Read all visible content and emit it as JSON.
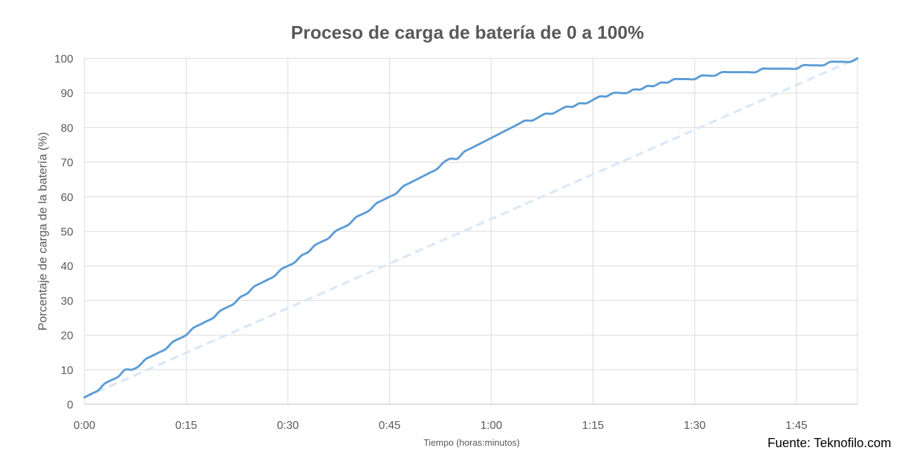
{
  "colors": {
    "background": "#ffffff",
    "text": "#595959",
    "gridline": "#d9d9d9",
    "main_series": "#5b9bd5",
    "reference_series": "#dbe8f6",
    "source_text": "#000000"
  },
  "source_text": "Fuente: Teknofilo.com",
  "chart_data": {
    "type": "line",
    "title": "Proceso de carga de batería de 0 a 100%",
    "xlabel": "Tiempo (horas:minutos)",
    "ylabel": "Porcentaje de carga de la batería (%)",
    "xlim": [
      0,
      114
    ],
    "ylim": [
      0,
      100
    ],
    "x_unit": "minutes",
    "x_tick_values": [
      0,
      15,
      30,
      45,
      60,
      75,
      90,
      105
    ],
    "x_tick_labels": [
      "0:00",
      "0:15",
      "0:30",
      "0:45",
      "1:00",
      "1:15",
      "1:30",
      "1:45"
    ],
    "y_ticks": [
      0,
      10,
      20,
      30,
      40,
      50,
      60,
      70,
      80,
      90,
      100
    ],
    "grid": true,
    "legend": "none",
    "series": [
      {
        "style": "solid",
        "color": "#5b9bd5",
        "x": [
          0,
          1,
          2,
          3,
          4,
          5,
          6,
          7,
          8,
          9,
          10,
          11,
          12,
          13,
          14,
          15,
          16,
          17,
          18,
          19,
          20,
          21,
          22,
          23,
          24,
          25,
          26,
          27,
          28,
          29,
          30,
          31,
          32,
          33,
          34,
          35,
          36,
          37,
          38,
          39,
          40,
          41,
          42,
          43,
          44,
          45,
          46,
          47,
          48,
          49,
          50,
          51,
          52,
          53,
          54,
          55,
          56,
          57,
          58,
          59,
          60,
          61,
          62,
          63,
          64,
          65,
          66,
          67,
          68,
          69,
          70,
          71,
          72,
          73,
          74,
          75,
          76,
          77,
          78,
          79,
          80,
          81,
          82,
          83,
          84,
          85,
          86,
          87,
          88,
          89,
          90,
          91,
          92,
          93,
          94,
          95,
          96,
          97,
          98,
          99,
          100,
          101,
          102,
          103,
          104,
          105,
          106,
          107,
          108,
          109,
          110,
          111,
          112,
          113,
          114
        ],
        "y": [
          2,
          3,
          4,
          6,
          7,
          8,
          10,
          10,
          11,
          13,
          14,
          15,
          16,
          18,
          19,
          20,
          22,
          23,
          24,
          25,
          27,
          28,
          29,
          31,
          32,
          34,
          35,
          36,
          37,
          39,
          40,
          41,
          43,
          44,
          46,
          47,
          48,
          50,
          51,
          52,
          54,
          55,
          56,
          58,
          59,
          60,
          61,
          63,
          64,
          65,
          66,
          67,
          68,
          70,
          71,
          71,
          73,
          74,
          75,
          76,
          77,
          78,
          79,
          80,
          81,
          82,
          82,
          83,
          84,
          84,
          85,
          86,
          86,
          87,
          87,
          88,
          89,
          89,
          90,
          90,
          90,
          91,
          91,
          92,
          92,
          93,
          93,
          94,
          94,
          94,
          94,
          95,
          95,
          95,
          96,
          96,
          96,
          96,
          96,
          96,
          97,
          97,
          97,
          97,
          97,
          97,
          98,
          98,
          98,
          98,
          99,
          99,
          99,
          99,
          100
        ]
      },
      {
        "style": "dashed",
        "color": "#dbe8f6",
        "x": [
          0,
          114
        ],
        "y": [
          2,
          100
        ]
      }
    ]
  }
}
